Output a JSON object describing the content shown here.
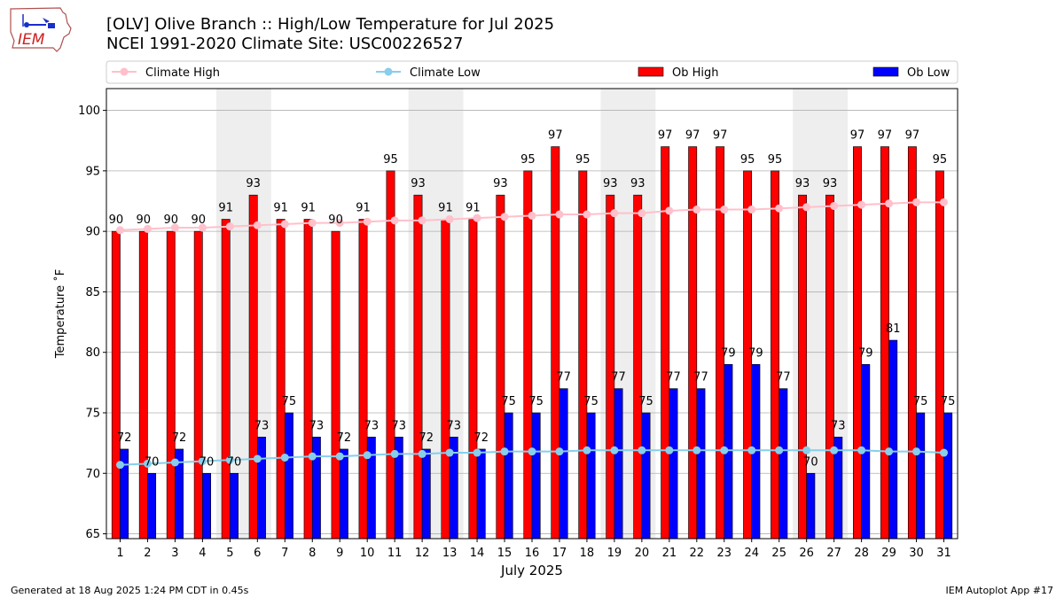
{
  "header": {
    "logo_text": "IEM",
    "title_line1": "[OLV] Olive Branch :: High/Low Temperature for Jul 2025",
    "title_line2": "NCEI 1991-2020 Climate Site: USC00226527"
  },
  "footer": {
    "generated": "Generated at 18 Aug 2025 1:24 PM CDT in 0.45s",
    "app": "IEM Autoplot App #17"
  },
  "colors": {
    "ob_high": "#ff0000",
    "ob_low": "#0000ff",
    "climate_high": "#ffc0cb",
    "climate_low": "#87ceeb",
    "weekend_shade": "#eeeeee",
    "grid": "#b0b0b0"
  },
  "chart_data": {
    "type": "bar",
    "xlabel": "July 2025",
    "ylabel": "Temperature ˚F",
    "ylim": [
      64.6,
      101.8
    ],
    "yticks": [
      65,
      70,
      75,
      80,
      85,
      90,
      95,
      100
    ],
    "grid": "horizontal",
    "legend_position": "top",
    "categories": [
      "1",
      "2",
      "3",
      "4",
      "5",
      "6",
      "7",
      "8",
      "9",
      "10",
      "11",
      "12",
      "13",
      "14",
      "15",
      "16",
      "17",
      "18",
      "19",
      "20",
      "21",
      "22",
      "23",
      "24",
      "25",
      "26",
      "27",
      "28",
      "29",
      "30",
      "31"
    ],
    "shaded_weekend_days": [
      [
        5,
        6
      ],
      [
        12,
        13
      ],
      [
        19,
        20
      ],
      [
        26,
        27
      ]
    ],
    "series": [
      {
        "name": "Ob High",
        "kind": "bar",
        "values": [
          90,
          90,
          90,
          90,
          91,
          93,
          91,
          91,
          90,
          91,
          95,
          93,
          91,
          91,
          93,
          95,
          97,
          95,
          93,
          93,
          97,
          97,
          97,
          95,
          95,
          93,
          93,
          97,
          97,
          97,
          95
        ],
        "labels": [
          "90",
          "90",
          "90",
          "90",
          "91",
          "93",
          "91",
          "91",
          "90",
          "91",
          "95",
          "93",
          "91",
          "91",
          "93",
          "95",
          "97",
          "95",
          "93",
          "93",
          "97",
          "97",
          "97",
          "95",
          "95",
          "93",
          "93",
          "97",
          "97",
          "97",
          "95"
        ]
      },
      {
        "name": "Ob Low",
        "kind": "bar",
        "values": [
          72,
          70,
          72,
          70,
          70,
          73,
          75,
          73,
          72,
          73,
          73,
          72,
          73,
          72,
          75,
          75,
          77,
          75,
          77,
          75,
          77,
          77,
          79,
          79,
          77,
          70,
          73,
          79,
          81,
          75,
          75
        ],
        "labels": [
          "72",
          "70",
          "72",
          "70",
          "70",
          "73",
          "75",
          "73",
          "72",
          "73",
          "73",
          "72",
          "73",
          "72",
          "75",
          "75",
          "77",
          "75",
          "77",
          "75",
          "77",
          "77",
          "79",
          "79",
          "77",
          "70",
          "73",
          "79",
          "81",
          "75",
          "75"
        ]
      },
      {
        "name": "Climate High",
        "kind": "line",
        "values": [
          90.1,
          90.2,
          90.3,
          90.3,
          90.4,
          90.5,
          90.6,
          90.7,
          90.7,
          90.8,
          90.9,
          90.9,
          91.0,
          91.1,
          91.2,
          91.3,
          91.4,
          91.4,
          91.5,
          91.5,
          91.7,
          91.8,
          91.8,
          91.8,
          91.9,
          92.0,
          92.1,
          92.2,
          92.3,
          92.4,
          92.4
        ]
      },
      {
        "name": "Climate Low",
        "kind": "line",
        "values": [
          70.7,
          70.8,
          70.9,
          71.0,
          71.1,
          71.2,
          71.3,
          71.4,
          71.4,
          71.5,
          71.6,
          71.6,
          71.7,
          71.7,
          71.8,
          71.8,
          71.8,
          71.9,
          71.9,
          71.9,
          71.9,
          71.9,
          71.9,
          71.9,
          71.9,
          71.9,
          71.9,
          71.9,
          71.8,
          71.8,
          71.7
        ]
      }
    ]
  }
}
